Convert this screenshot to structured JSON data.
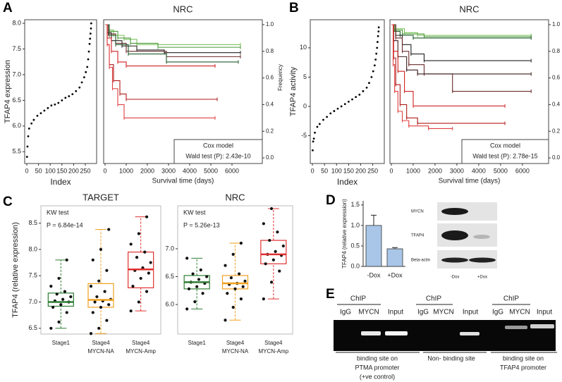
{
  "panel_labels": [
    "A",
    "B",
    "C",
    "D",
    "E"
  ],
  "chart_data": [
    {
      "type": "scatter",
      "xlabel": "Index",
      "ylabel": "TFAP4 expression",
      "color": "#000000",
      "x": [
        1,
        3,
        6,
        10,
        20,
        30,
        45,
        60,
        75,
        90,
        105,
        120,
        135,
        150,
        165,
        180,
        195,
        210,
        225,
        235,
        245,
        252,
        258,
        262,
        265,
        268,
        270,
        272,
        274,
        275
      ],
      "values": [
        5.4,
        5.6,
        5.8,
        5.95,
        6.05,
        6.12,
        6.2,
        6.25,
        6.3,
        6.35,
        6.4,
        6.42,
        6.45,
        6.5,
        6.55,
        6.58,
        6.62,
        6.68,
        6.75,
        6.85,
        6.95,
        7.05,
        7.15,
        7.3,
        7.45,
        7.6,
        7.7,
        7.8,
        7.9,
        8.0
      ],
      "xlim": [
        -9,
        298
      ],
      "xticks": [
        0,
        50,
        100,
        150,
        200,
        250
      ],
      "ylim": [
        5.27,
        8.07
      ],
      "yticks": [
        5.5,
        {
          "value": 6,
          "label": "6.0"
        },
        6.5,
        {
          "value": 7,
          "label": "7.0"
        },
        7.5,
        {
          "value": 8,
          "label": "8.0"
        }
      ]
    },
    {
      "type": "km",
      "title": "NRC",
      "xlabel": "Survival time (days)",
      "y2label": "Frequency",
      "legend_title": "Cox model",
      "legend_text": "Wald test (P): 2.43e-10",
      "xlim": [
        -67,
        7433
      ],
      "xticks": [
        0,
        1000,
        2000,
        3000,
        4000,
        5000,
        6000
      ],
      "y2lim": [
        -0.042,
        1.037
      ],
      "y2ticks": [
        {
          "value": 0,
          "label": "0.0"
        },
        0.2,
        0.4,
        0.6,
        0.8,
        {
          "value": 1,
          "label": "1.0"
        }
      ],
      "series": [
        {
          "color": "#7cc35a",
          "x": [
            0,
            150,
            400,
            900,
            1500,
            6400
          ],
          "values": [
            1,
            0.96,
            0.92,
            0.89,
            0.85,
            0.85
          ]
        },
        {
          "color": "#4a9a3a",
          "x": [
            0,
            200,
            600,
            1200,
            2500,
            6400
          ],
          "values": [
            1,
            0.95,
            0.9,
            0.86,
            0.83,
            0.83
          ]
        },
        {
          "color": "#222222",
          "x": [
            0,
            100,
            300,
            800,
            1500,
            2800,
            6400
          ],
          "values": [
            1,
            0.94,
            0.88,
            0.84,
            0.81,
            0.79,
            0.79
          ]
        },
        {
          "color": "#6b2a2a",
          "x": [
            0,
            150,
            500,
            1000,
            2900,
            6400
          ],
          "values": [
            1,
            0.93,
            0.86,
            0.8,
            0.76,
            0.76
          ]
        },
        {
          "color": "#1f5a2a",
          "x": [
            0,
            200,
            500,
            1100,
            2900,
            6300
          ],
          "values": [
            1,
            0.92,
            0.85,
            0.78,
            0.72,
            0.72
          ]
        },
        {
          "color": "#d02020",
          "x": [
            0,
            100,
            300,
            600,
            1000,
            5200
          ],
          "values": [
            1,
            0.9,
            0.8,
            0.72,
            0.69,
            0.69
          ]
        },
        {
          "color": "#b01818",
          "x": [
            0,
            100,
            200,
            400,
            700,
            1000,
            5300
          ],
          "values": [
            1,
            0.85,
            0.7,
            0.58,
            0.48,
            0.44,
            0.44
          ]
        },
        {
          "color": "#e04040",
          "x": [
            0,
            100,
            200,
            350,
            600,
            900,
            5200
          ],
          "values": [
            1,
            0.85,
            0.68,
            0.52,
            0.4,
            0.3,
            0.3
          ]
        }
      ]
    },
    {
      "type": "scatter",
      "xlabel": "Index",
      "ylabel": "TFAP4 activity",
      "color": "#000000",
      "x": [
        1,
        3,
        6,
        10,
        20,
        30,
        45,
        60,
        75,
        90,
        105,
        120,
        135,
        150,
        165,
        180,
        195,
        210,
        225,
        235,
        245,
        252,
        258,
        262,
        265,
        268,
        270,
        272,
        274,
        275
      ],
      "values": [
        -7.5,
        -6,
        -5.5,
        -4.5,
        -3.5,
        -3,
        -2.3,
        -1.8,
        -1.2,
        -0.8,
        -0.4,
        0,
        0.4,
        0.8,
        1.2,
        1.6,
        2,
        2.6,
        3.2,
        4,
        5,
        6,
        7,
        8,
        9,
        10,
        11,
        12,
        12.8,
        13.5
      ],
      "xlim": [
        -9,
        298
      ],
      "xticks": [
        0,
        50,
        100,
        150,
        200,
        250
      ],
      "ylim": [
        -9.76,
        14.8
      ],
      "yticks": [
        -5,
        0,
        5,
        10
      ]
    },
    {
      "type": "km",
      "title": "NRC",
      "xlabel": "Survival time (days)",
      "legend_title": "Cox model",
      "legend_text": "Wald test (P): 2.78e-15",
      "xlim": [
        -65,
        7200
      ],
      "xticks": [
        0,
        1000,
        2000,
        3000,
        4000,
        5000,
        6000
      ],
      "y2lim": [
        -0.042,
        1.037
      ],
      "y2ticks": [
        {
          "value": 0,
          "label": "0.0"
        },
        0.2,
        0.4,
        0.6,
        0.8,
        {
          "value": 1,
          "label": "1.0"
        }
      ],
      "series": [
        {
          "color": "#7cc35a",
          "x": [
            0,
            200,
            600,
            1200,
            6400
          ],
          "values": [
            1,
            0.97,
            0.94,
            0.92,
            0.92
          ]
        },
        {
          "color": "#4a9a3a",
          "x": [
            0,
            150,
            500,
            1500,
            6400
          ],
          "values": [
            1,
            0.96,
            0.93,
            0.91,
            0.91
          ]
        },
        {
          "color": "#1f5a2a",
          "x": [
            0,
            100,
            400,
            1000,
            6400
          ],
          "values": [
            1,
            0.95,
            0.92,
            0.9,
            0.9
          ]
        },
        {
          "color": "#222222",
          "x": [
            0,
            200,
            500,
            900,
            1500,
            6400
          ],
          "values": [
            1,
            0.92,
            0.85,
            0.78,
            0.73,
            0.73
          ]
        },
        {
          "color": "#6b2a2a",
          "x": [
            0,
            200,
            500,
            800,
            1500,
            2800,
            6400
          ],
          "values": [
            1,
            0.9,
            0.8,
            0.7,
            0.63,
            0.5,
            0.5
          ]
        },
        {
          "color": "#3a1a1a",
          "x": [
            0,
            100,
            300,
            700,
            1200,
            6400
          ],
          "values": [
            1,
            0.88,
            0.76,
            0.66,
            0.63,
            0.63
          ]
        },
        {
          "color": "#d02020",
          "x": [
            0,
            100,
            300,
            600,
            1000,
            5200
          ],
          "values": [
            1,
            0.8,
            0.65,
            0.5,
            0.39,
            0.39
          ]
        },
        {
          "color": "#b01818",
          "x": [
            0,
            100,
            200,
            400,
            700,
            1200,
            5200
          ],
          "values": [
            1,
            0.75,
            0.55,
            0.4,
            0.3,
            0.26,
            0.26
          ]
        },
        {
          "color": "#e04040",
          "x": [
            0,
            80,
            150,
            300,
            500,
            800,
            1700,
            2800
          ],
          "values": [
            1,
            0.7,
            0.5,
            0.35,
            0.28,
            0.24,
            0.22,
            0.22
          ]
        }
      ]
    },
    {
      "type": "box",
      "title": "TARGET",
      "annotations": [
        "KW test",
        "P = 6.84e-14"
      ],
      "ylabel": "TFAP4 (relative expression)",
      "categories": [
        [
          "Stage1"
        ],
        [
          "Stage4",
          "MYCN-NA"
        ],
        [
          "Stage4",
          "MYCN-Amp"
        ]
      ],
      "ylim": [
        6.39,
        8.83
      ],
      "yticks": [
        6.5,
        {
          "value": 7,
          "label": "7.0"
        },
        7.5,
        {
          "value": 8,
          "label": "8.0"
        },
        8.5
      ],
      "groups": [
        {
          "color": "#2e7d32",
          "min": 6.5,
          "q1": 6.92,
          "median": 7.0,
          "q3": 7.17,
          "max": 7.8,
          "points": [
            6.5,
            6.62,
            6.8,
            6.9,
            6.95,
            7.0,
            7.02,
            7.05,
            7.1,
            7.15,
            7.2,
            7.3,
            7.45,
            7.8
          ]
        },
        {
          "color": "#f0a020",
          "min": 6.4,
          "q1": 6.9,
          "median": 7.04,
          "q3": 7.35,
          "max": 8.38,
          "points": [
            6.4,
            6.5,
            6.65,
            6.8,
            6.9,
            6.95,
            7.0,
            7.02,
            7.05,
            7.1,
            7.2,
            7.3,
            7.4,
            7.6,
            7.8,
            8.0,
            8.38
          ]
        },
        {
          "color": "#e03030",
          "min": 6.83,
          "q1": 7.27,
          "median": 7.62,
          "q3": 7.95,
          "max": 8.62,
          "points": [
            6.83,
            7.0,
            7.2,
            7.3,
            7.45,
            7.55,
            7.6,
            7.65,
            7.75,
            7.85,
            7.95,
            8.1,
            8.3,
            8.62
          ]
        }
      ]
    },
    {
      "type": "box",
      "title": "NRC",
      "annotations": [
        "KW test",
        "P = 5.26e-13"
      ],
      "categories": [
        [
          "Stage1"
        ],
        [
          "Stage4",
          "MYCN-NA"
        ],
        [
          "Stage4",
          "MYCN-Amp"
        ]
      ],
      "ylim": [
        5.47,
        7.77
      ],
      "yticks": [
        {
          "value": 6,
          "label": "6.0"
        },
        6.5,
        {
          "value": 7,
          "label": "7.0"
        }
      ],
      "groups": [
        {
          "color": "#2e7d32",
          "min": 5.92,
          "q1": 6.28,
          "median": 6.4,
          "q3": 6.52,
          "max": 6.83,
          "points": [
            5.92,
            6.05,
            6.2,
            6.28,
            6.32,
            6.38,
            6.4,
            6.45,
            6.5,
            6.55,
            6.62,
            6.83
          ]
        },
        {
          "color": "#f0a020",
          "min": 5.72,
          "q1": 6.28,
          "median": 6.38,
          "q3": 6.52,
          "max": 7.1,
          "points": [
            5.72,
            5.95,
            6.1,
            6.2,
            6.28,
            6.32,
            6.36,
            6.38,
            6.42,
            6.48,
            6.55,
            6.7,
            6.9,
            7.1
          ]
        },
        {
          "color": "#e03030",
          "min": 6.1,
          "q1": 6.73,
          "median": 6.9,
          "q3": 7.15,
          "max": 7.72,
          "points": [
            6.1,
            6.4,
            6.6,
            6.73,
            6.8,
            6.88,
            6.9,
            6.95,
            7.05,
            7.15,
            7.3,
            7.45,
            7.72
          ]
        }
      ]
    },
    {
      "type": "bar",
      "ylabel": "TFAP4 (relative expression)",
      "color": "#a9c6e8",
      "categories": [
        "-Dox",
        "+Dox"
      ],
      "values": [
        1.0,
        0.43
      ],
      "errors": [
        0.25,
        0.03
      ],
      "ylim": [
        0,
        1.6
      ],
      "yticks": [
        {
          "value": 0,
          "label": "0.0"
        },
        0.5,
        {
          "value": 1,
          "label": "1.0"
        },
        1.5
      ]
    }
  ],
  "western_blot": {
    "rows": [
      "MYCN",
      "TFAP4",
      "Beta-actin"
    ],
    "lanes": [
      "-Dox",
      "+Dox"
    ]
  },
  "chip_gel": {
    "groups": [
      {
        "title": "ChIP",
        "lanes": [
          "IgG",
          "MYCN",
          "Input"
        ],
        "caption": [
          "binding site on",
          "PTMA promoter",
          "(+ve control)"
        ]
      },
      {
        "title": "ChIP",
        "lanes": [
          "IgG",
          "MYCN",
          "Input"
        ],
        "caption": [
          "Non- binding site"
        ]
      },
      {
        "title": "ChIP",
        "lanes": [
          "IgG",
          "MYCN",
          "Input"
        ],
        "caption": [
          "binding site on",
          "TFAP4 promoter"
        ]
      }
    ]
  }
}
